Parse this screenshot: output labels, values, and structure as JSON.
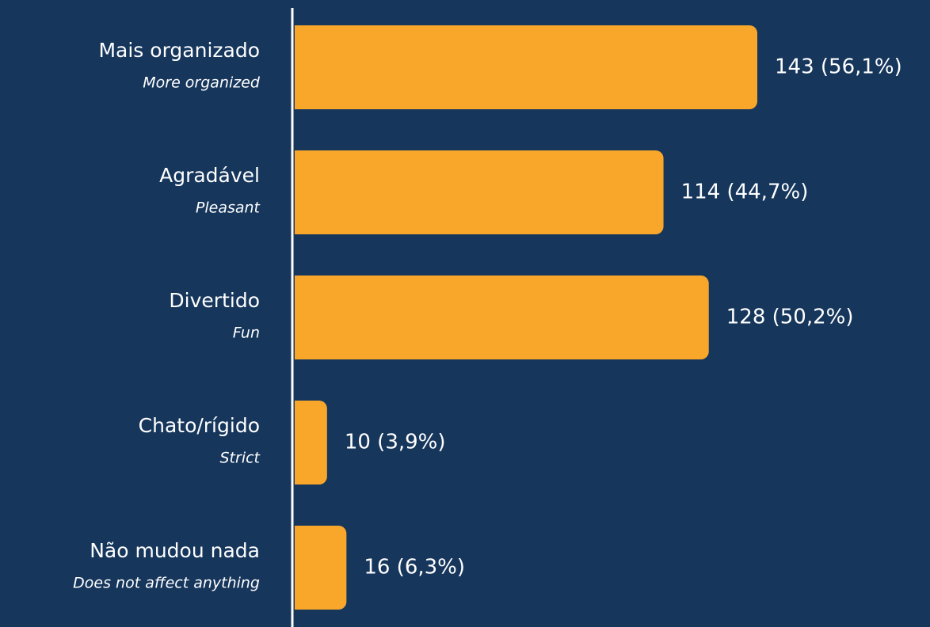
{
  "chart_data": {
    "type": "bar",
    "orientation": "horizontal",
    "categories": [
      "Mais organizado",
      "Agradável",
      "Divertido",
      "Chato/rígido",
      "Não mudou nada"
    ],
    "category_translations": [
      "More organized",
      "Pleasant",
      "Fun",
      "Strict",
      "Does not affect anything"
    ],
    "values": [
      143,
      114,
      128,
      10,
      16
    ],
    "value_labels": [
      "143 (56,1%)",
      "114 (44,7%)",
      "128 (50,2%)",
      "10 (3,9%)",
      "16 (6,3%)"
    ],
    "color": "#f9a72b"
  }
}
